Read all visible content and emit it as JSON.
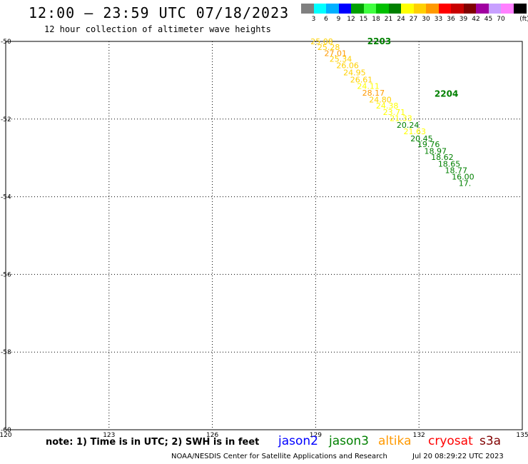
{
  "header": {
    "title": "12:00 — 23:59 UTC 07/18/2023",
    "subtitle": "12 hour collection of altimeter wave heights"
  },
  "scale": {
    "unit": "(ft)",
    "items": [
      {
        "color": "#808080",
        "label": ""
      },
      {
        "color": "#00ffff",
        "label": "3"
      },
      {
        "color": "#00b0ff",
        "label": "6"
      },
      {
        "color": "#0000ff",
        "label": "9"
      },
      {
        "color": "#00a000",
        "label": "12"
      },
      {
        "color": "#40ff40",
        "label": "15"
      },
      {
        "color": "#00c000",
        "label": "18"
      },
      {
        "color": "#008000",
        "label": "21"
      },
      {
        "color": "#ffff00",
        "label": "24"
      },
      {
        "color": "#ffd000",
        "label": "27"
      },
      {
        "color": "#ff9900",
        "label": "30"
      },
      {
        "color": "#ff0000",
        "label": "33"
      },
      {
        "color": "#c80000",
        "label": "36"
      },
      {
        "color": "#800000",
        "label": "39"
      },
      {
        "color": "#a000a0",
        "label": "42"
      },
      {
        "color": "#c8a0ff",
        "label": "45"
      },
      {
        "color": "#ff80ff",
        "label": "70"
      },
      {
        "color": "#000000",
        "label": ""
      }
    ]
  },
  "map": {
    "lon_range": [
      120,
      135
    ],
    "lat_range": [
      -60,
      -50
    ],
    "lon_ticks": [
      "120",
      "123",
      "126",
      "129",
      "132",
      "135"
    ],
    "lat_ticks": [
      "-50",
      "-52",
      "-54",
      "-56",
      "-58",
      "-60"
    ],
    "passes": [
      {
        "label": "2203",
        "color": "#008000"
      },
      {
        "label": "2204",
        "color": "#008000"
      }
    ],
    "observations": [
      {
        "value": "25.08",
        "color": "#ffd000",
        "lon": 129.1,
        "lat": -50.0
      },
      {
        "value": "25.28",
        "color": "#ffd000",
        "lon": 129.3,
        "lat": -50.15
      },
      {
        "value": "27.01",
        "color": "#ff9900",
        "lon": 129.5,
        "lat": -50.3
      },
      {
        "value": "25.34",
        "color": "#ffd000",
        "lon": 129.65,
        "lat": -50.45
      },
      {
        "value": "26.06",
        "color": "#ffd000",
        "lon": 129.85,
        "lat": -50.62
      },
      {
        "value": "24.95",
        "color": "#ffd000",
        "lon": 130.05,
        "lat": -50.8
      },
      {
        "value": "26.61",
        "color": "#ffd000",
        "lon": 130.25,
        "lat": -50.98
      },
      {
        "value": "24.11",
        "color": "#ffff00",
        "lon": 130.45,
        "lat": -51.15
      },
      {
        "value": "28.17",
        "color": "#ff9900",
        "lon": 130.6,
        "lat": -51.32
      },
      {
        "value": "24.80",
        "color": "#ffd000",
        "lon": 130.8,
        "lat": -51.5
      },
      {
        "value": "24.38",
        "color": "#ffff00",
        "lon": 131.0,
        "lat": -51.65
      },
      {
        "value": "23.71",
        "color": "#ffff00",
        "lon": 131.2,
        "lat": -51.82
      },
      {
        "value": "21.33",
        "color": "#ffff00",
        "lon": 131.4,
        "lat": -51.98
      },
      {
        "value": "20.24",
        "color": "#008000",
        "lon": 131.6,
        "lat": -52.15
      },
      {
        "value": "21.63",
        "color": "#ffff00",
        "lon": 131.8,
        "lat": -52.32
      },
      {
        "value": "20.45",
        "color": "#008000",
        "lon": 132.0,
        "lat": -52.5
      },
      {
        "value": "19.76",
        "color": "#008000",
        "lon": 132.2,
        "lat": -52.65
      },
      {
        "value": "18.97",
        "color": "#008000",
        "lon": 132.4,
        "lat": -52.82
      },
      {
        "value": "18.62",
        "color": "#008000",
        "lon": 132.6,
        "lat": -52.98
      },
      {
        "value": "18.65",
        "color": "#008000",
        "lon": 132.8,
        "lat": -53.15
      },
      {
        "value": "18.77",
        "color": "#008000",
        "lon": 133.0,
        "lat": -53.32
      },
      {
        "value": "16.00",
        "color": "#008000",
        "lon": 133.2,
        "lat": -53.48
      },
      {
        "value": "17.",
        "color": "#008000",
        "lon": 133.4,
        "lat": -53.65
      }
    ]
  },
  "footer": {
    "note": "note: 1) Time is in UTC; 2) SWH is in feet",
    "satellites": [
      {
        "name": "jason2",
        "color": "#0000ff"
      },
      {
        "name": "jason3",
        "color": "#008000"
      },
      {
        "name": "altika",
        "color": "#ff9900"
      },
      {
        "name": "cryosat",
        "color": "#ff0000"
      },
      {
        "name": "s3a",
        "color": "#800000"
      }
    ],
    "credit": "NOAA/NESDIS Center for Satellite Applications and Research",
    "timestamp": "Jul 20 08:29:22 UTC 2023"
  }
}
